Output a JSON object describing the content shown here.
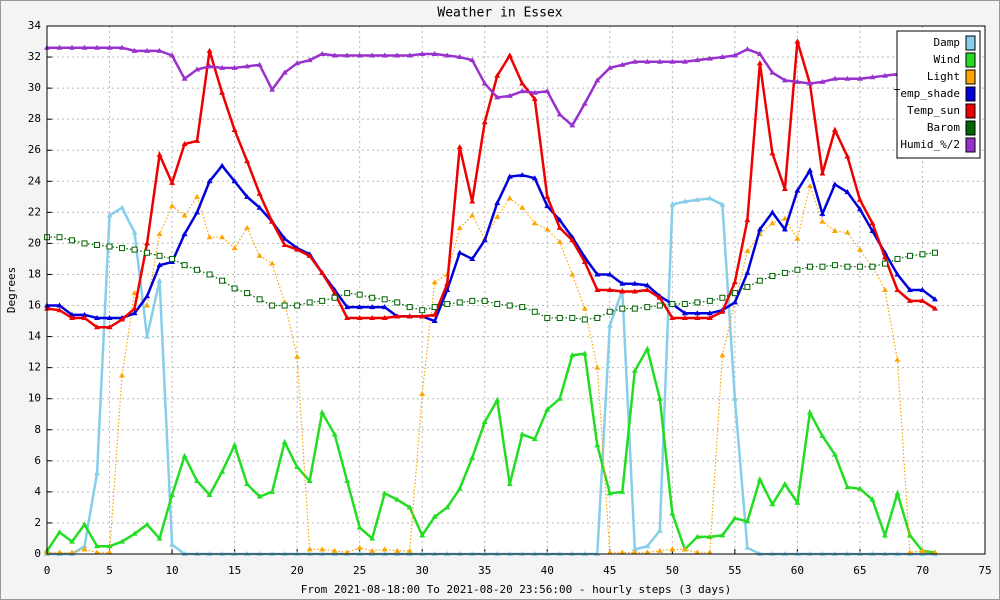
{
  "chart_data": {
    "type": "line",
    "title": "Weather in Essex",
    "xlabel": "From 2021-08-18:00 To 2021-08-20 23:56:00 - hourly steps (3 days)",
    "ylabel": "Degrees",
    "x": [
      0,
      1,
      2,
      3,
      4,
      5,
      6,
      7,
      8,
      9,
      10,
      11,
      12,
      13,
      14,
      15,
      16,
      17,
      18,
      19,
      20,
      21,
      22,
      23,
      24,
      25,
      26,
      27,
      28,
      29,
      30,
      31,
      32,
      33,
      34,
      35,
      36,
      37,
      38,
      39,
      40,
      41,
      42,
      43,
      44,
      45,
      46,
      47,
      48,
      49,
      50,
      51,
      52,
      53,
      54,
      55,
      56,
      57,
      58,
      59,
      60,
      61,
      62,
      63,
      64,
      65,
      66,
      67,
      68,
      69,
      70,
      71
    ],
    "xlim": [
      0,
      75
    ],
    "xticks": [
      0,
      5,
      10,
      15,
      20,
      25,
      30,
      35,
      40,
      45,
      50,
      55,
      60,
      65,
      70,
      75
    ],
    "ylim": [
      0,
      34
    ],
    "yticks": [
      0,
      2,
      4,
      6,
      8,
      10,
      12,
      14,
      16,
      18,
      20,
      22,
      24,
      26,
      28,
      30,
      32,
      34
    ],
    "grid": true,
    "legend": "top-right",
    "series": [
      {
        "name": "Damp",
        "color": "#87ceeb",
        "dashed": false,
        "values": [
          0,
          0,
          0,
          0.5,
          5.2,
          21.8,
          22.3,
          20.7,
          14.0,
          17.6,
          0.6,
          0,
          0,
          0,
          0,
          0,
          0,
          0,
          0,
          0,
          0,
          0,
          0,
          0,
          0,
          0,
          0,
          0,
          0,
          0,
          0,
          0,
          0,
          0,
          0,
          0,
          0,
          0,
          0,
          0,
          0,
          0,
          0,
          0,
          0,
          14.7,
          17.0,
          0.3,
          0.5,
          1.5,
          22.5,
          22.7,
          22.8,
          22.9,
          22.5,
          10.0,
          0.4,
          0,
          0,
          0,
          0,
          0,
          0,
          0,
          0,
          0,
          0,
          0,
          0,
          0,
          0,
          0
        ]
      },
      {
        "name": "Wind",
        "color": "#22dd22",
        "dashed": false,
        "values": [
          0.2,
          1.4,
          0.8,
          1.9,
          0.5,
          0.5,
          0.8,
          1.3,
          1.9,
          1.0,
          3.8,
          6.3,
          4.7,
          3.8,
          5.3,
          7.0,
          4.5,
          3.7,
          4.0,
          7.2,
          5.6,
          4.7,
          9.1,
          7.7,
          4.7,
          1.7,
          1.0,
          3.9,
          3.5,
          3.0,
          1.2,
          2.4,
          3.0,
          4.2,
          6.2,
          8.5,
          9.9,
          4.5,
          7.7,
          7.4,
          9.3,
          10.0,
          12.8,
          12.9,
          7.0,
          3.9,
          4.0,
          11.8,
          13.2,
          10.0,
          2.6,
          0.3,
          1.1,
          1.1,
          1.2,
          2.3,
          2.1,
          4.8,
          3.2,
          4.5,
          3.3,
          9.1,
          7.6,
          6.4,
          4.3,
          4.2,
          3.5,
          1.2,
          3.9,
          1.2,
          0.2,
          0.1
        ]
      },
      {
        "name": "Light",
        "color": "#ffa500",
        "dashed": true,
        "values": [
          0.1,
          0.1,
          0.1,
          0.3,
          0.1,
          0.1,
          11.5,
          16.8,
          16.0,
          20.6,
          22.4,
          21.8,
          23.0,
          20.4,
          20.4,
          19.7,
          21.0,
          19.2,
          18.7,
          16.2,
          12.7,
          0.3,
          0.3,
          0.2,
          0.1,
          0.4,
          0.2,
          0.3,
          0.2,
          0.2,
          10.3,
          17.5,
          18.0,
          21.0,
          21.8,
          20.3,
          21.7,
          22.9,
          22.3,
          21.3,
          20.9,
          20.1,
          18.0,
          15.8,
          12.0,
          0.1,
          0.1,
          0.1,
          0.1,
          0.2,
          0.3,
          0.3,
          0.1,
          0.1,
          12.8,
          16.2,
          19.5,
          20.6,
          21.3,
          21.6,
          20.3,
          23.7,
          21.4,
          20.8,
          20.7,
          19.6,
          18.5,
          17.0,
          12.5,
          0.1,
          0.2,
          0.1
        ]
      },
      {
        "name": "Temp_shade",
        "color": "#0000dd",
        "dashed": false,
        "values": [
          16.0,
          16.0,
          15.4,
          15.4,
          15.2,
          15.2,
          15.2,
          15.5,
          16.6,
          18.6,
          18.8,
          20.6,
          22.0,
          24.0,
          25.0,
          24.0,
          23.0,
          22.3,
          21.4,
          20.3,
          19.7,
          19.3,
          18.1,
          17.0,
          15.9,
          15.9,
          15.9,
          15.9,
          15.3,
          15.3,
          15.3,
          15.0,
          17.0,
          19.4,
          19.0,
          20.2,
          22.6,
          24.3,
          24.4,
          24.2,
          22.4,
          21.5,
          20.4,
          19.1,
          18.0,
          18.0,
          17.4,
          17.4,
          17.3,
          16.6,
          16.1,
          15.5,
          15.5,
          15.5,
          15.7,
          16.2,
          18.1,
          20.9,
          22.0,
          20.9,
          23.4,
          24.7,
          21.9,
          23.8,
          23.3,
          22.2,
          20.8,
          19.4,
          18.0,
          17.0,
          17.0,
          16.4
        ]
      },
      {
        "name": "Temp_sun",
        "color": "#ee0000",
        "dashed": false,
        "values": [
          15.8,
          15.7,
          15.2,
          15.2,
          14.6,
          14.6,
          15.1,
          15.8,
          20.0,
          25.7,
          23.9,
          26.4,
          26.6,
          32.4,
          29.7,
          27.3,
          25.3,
          23.2,
          21.4,
          19.9,
          19.6,
          19.2,
          18.1,
          16.8,
          15.2,
          15.2,
          15.2,
          15.2,
          15.3,
          15.3,
          15.3,
          15.4,
          17.4,
          26.2,
          22.7,
          27.8,
          30.8,
          32.1,
          30.3,
          29.3,
          23.0,
          21.0,
          20.2,
          18.8,
          17.0,
          17.0,
          16.9,
          16.9,
          17.0,
          16.5,
          15.2,
          15.2,
          15.2,
          15.2,
          15.6,
          17.5,
          21.5,
          31.6,
          25.8,
          23.5,
          33.0,
          30.3,
          24.5,
          27.3,
          25.6,
          22.8,
          21.3,
          19.1,
          17.0,
          16.3,
          16.3,
          15.8
        ]
      },
      {
        "name": "Barom",
        "color": "#006400",
        "dashed": true,
        "values": [
          20.4,
          20.4,
          20.2,
          20.0,
          19.9,
          19.8,
          19.7,
          19.6,
          19.4,
          19.2,
          19.0,
          18.6,
          18.3,
          18.0,
          17.6,
          17.1,
          16.8,
          16.4,
          16.0,
          16.0,
          16.0,
          16.2,
          16.3,
          16.5,
          16.8,
          16.7,
          16.5,
          16.4,
          16.2,
          15.9,
          15.7,
          15.9,
          16.1,
          16.2,
          16.3,
          16.3,
          16.1,
          16.0,
          15.9,
          15.6,
          15.2,
          15.2,
          15.2,
          15.1,
          15.2,
          15.6,
          15.8,
          15.8,
          15.9,
          16.0,
          16.1,
          16.1,
          16.2,
          16.3,
          16.5,
          16.8,
          17.2,
          17.6,
          17.9,
          18.1,
          18.3,
          18.5,
          18.5,
          18.6,
          18.5,
          18.5,
          18.5,
          18.7,
          19.0,
          19.2,
          19.3,
          19.4
        ]
      },
      {
        "name": "Humid_%/2",
        "color": "#9932cc",
        "dashed": false,
        "values": [
          32.6,
          32.6,
          32.6,
          32.6,
          32.6,
          32.6,
          32.6,
          32.4,
          32.4,
          32.4,
          32.1,
          30.6,
          31.2,
          31.4,
          31.3,
          31.3,
          31.4,
          31.5,
          29.9,
          31.0,
          31.6,
          31.8,
          32.2,
          32.1,
          32.1,
          32.1,
          32.1,
          32.1,
          32.1,
          32.1,
          32.2,
          32.2,
          32.1,
          32.0,
          31.8,
          30.3,
          29.4,
          29.5,
          29.8,
          29.7,
          29.8,
          28.3,
          27.6,
          29.0,
          30.5,
          31.3,
          31.5,
          31.7,
          31.7,
          31.7,
          31.7,
          31.7,
          31.8,
          31.9,
          32.0,
          32.1,
          32.5,
          32.2,
          31.0,
          30.5,
          30.4,
          30.3,
          30.4,
          30.6,
          30.6,
          30.6,
          30.7,
          30.8,
          30.9,
          null,
          null,
          null
        ]
      }
    ]
  }
}
